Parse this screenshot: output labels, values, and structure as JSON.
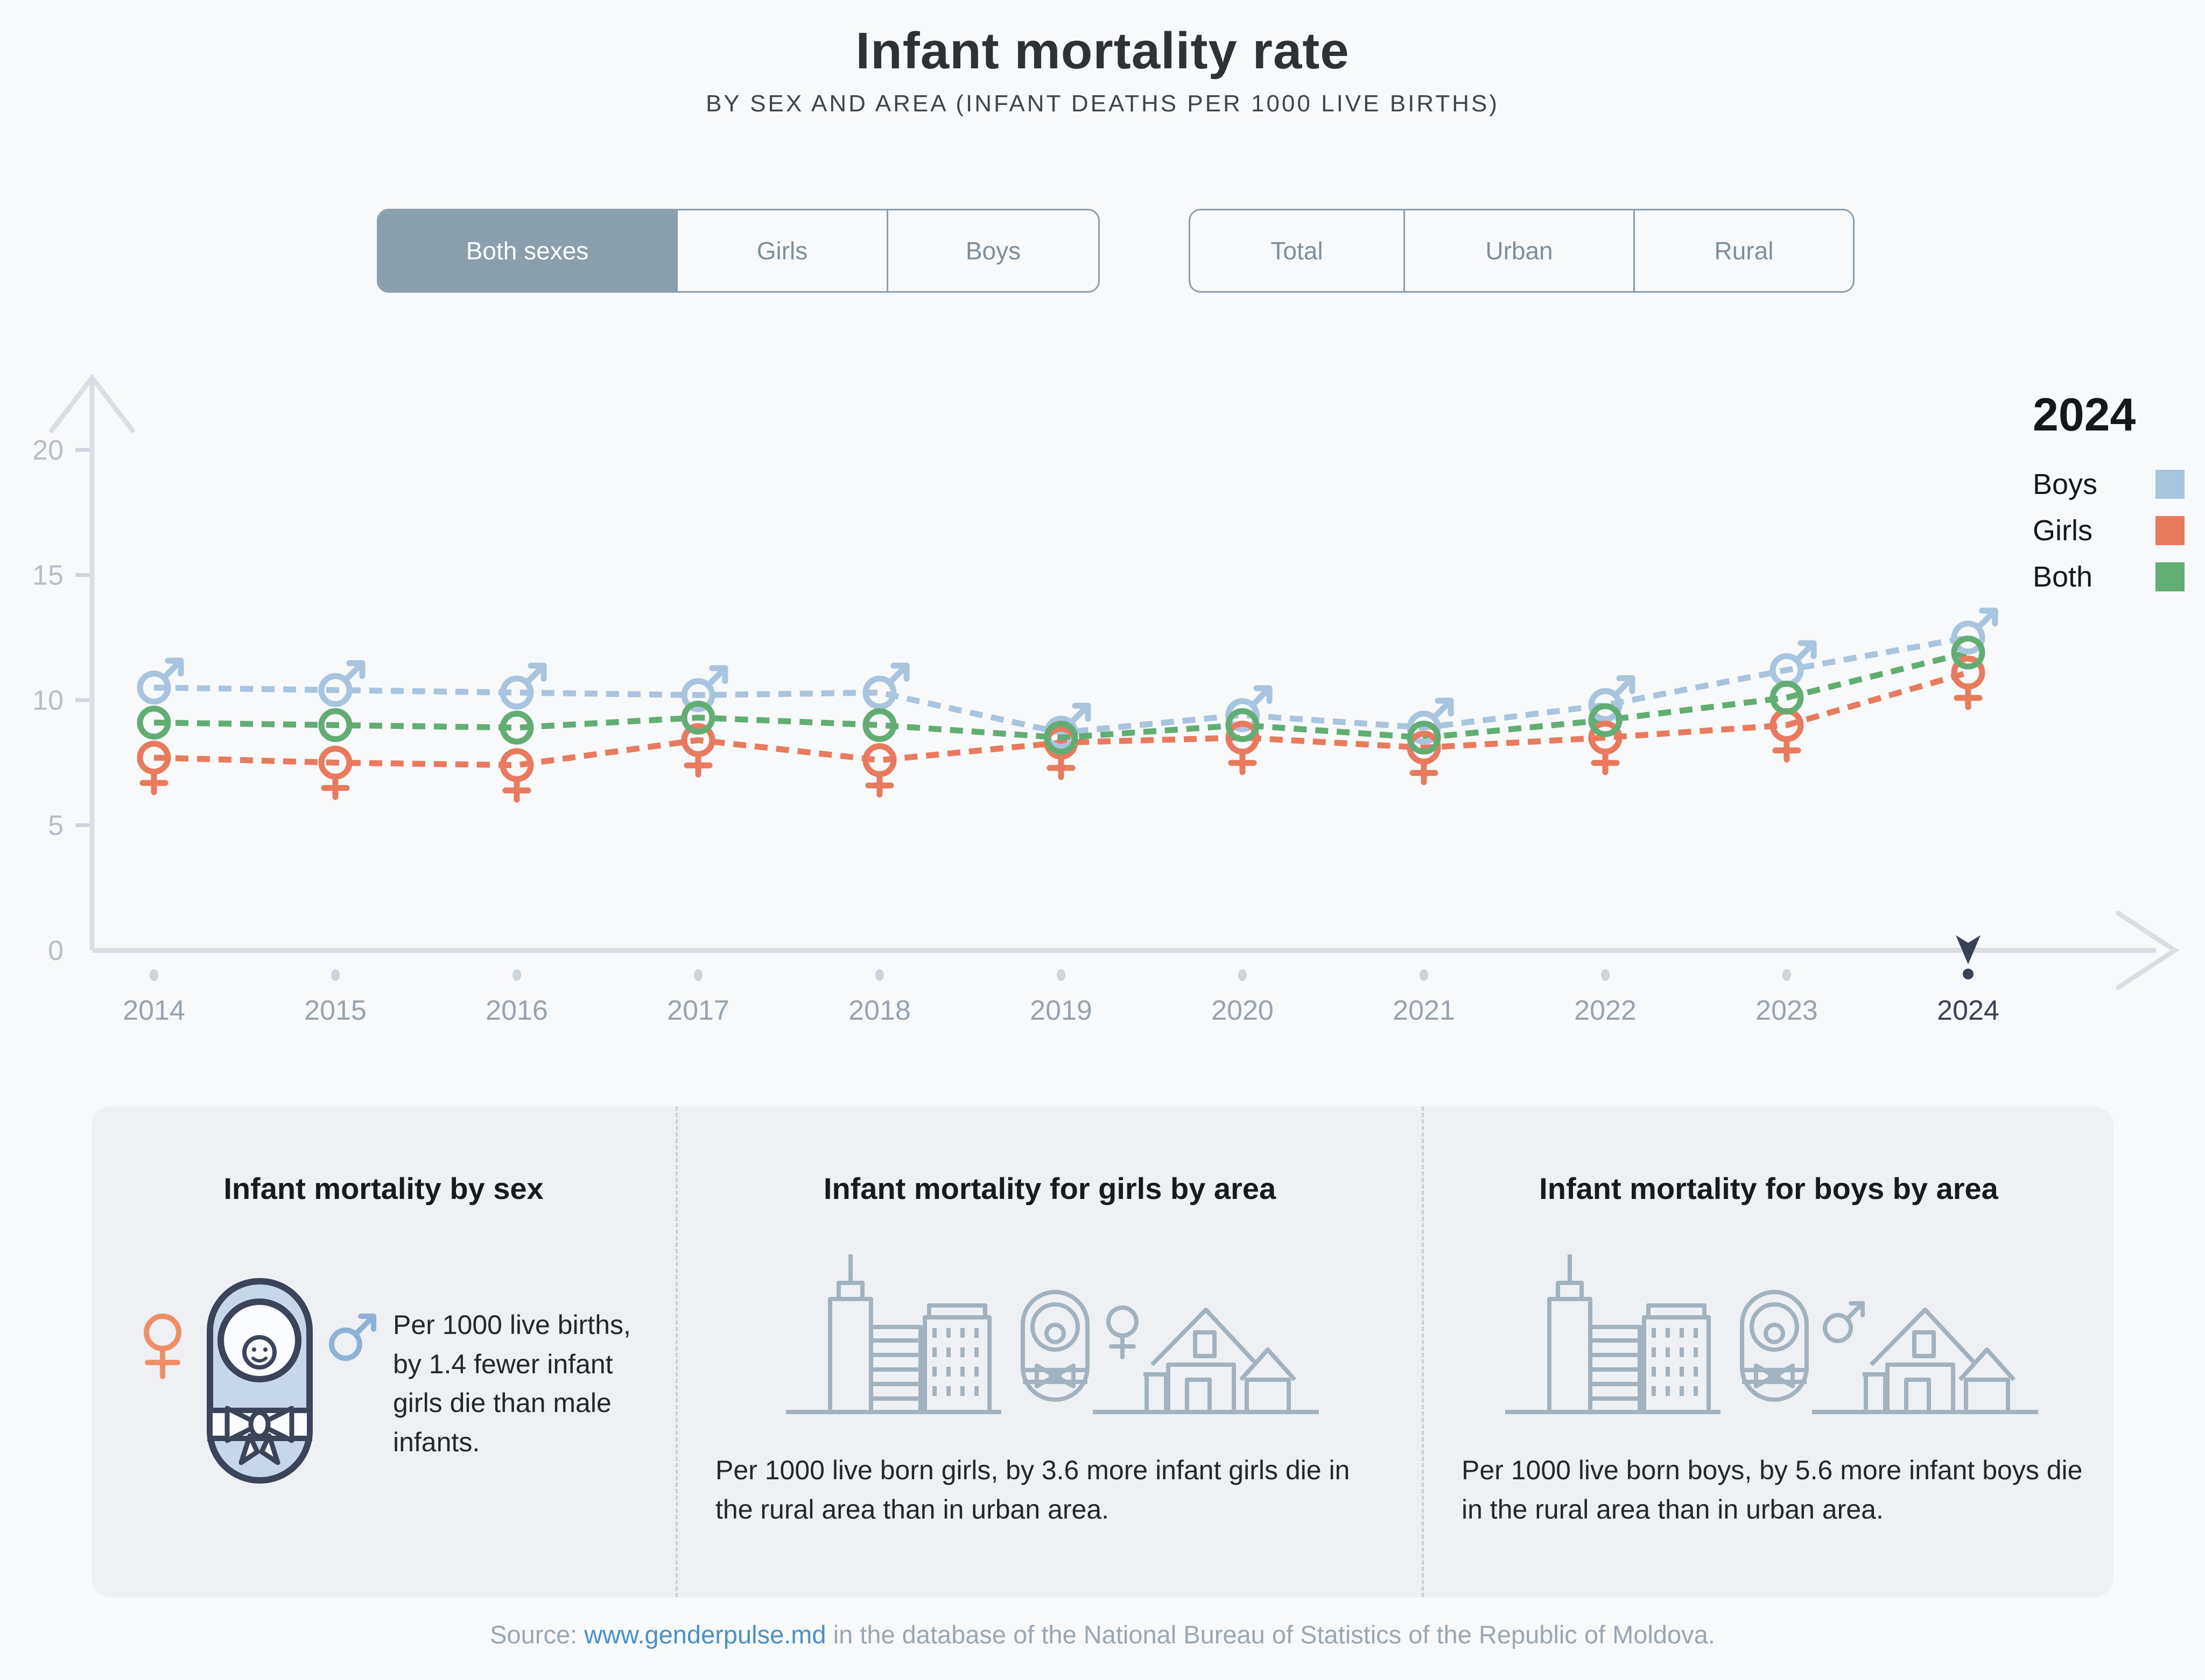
{
  "title": "Infant mortality rate",
  "subtitle": "BY SEX AND AREA (INFANT DEATHS PER 1000 LIVE BIRTHS)",
  "filters": {
    "sex": {
      "options": [
        "Both sexes",
        "Girls",
        "Boys"
      ],
      "active": "Both sexes"
    },
    "area": {
      "options": [
        "Total",
        "Urban",
        "Rural"
      ],
      "active": null
    }
  },
  "chart_data": {
    "type": "line",
    "title": "Infant mortality rate",
    "xlabel": "",
    "ylabel": "Infant deaths per 1000 live births",
    "x": [
      2014,
      2015,
      2016,
      2017,
      2018,
      2019,
      2020,
      2021,
      2022,
      2023,
      2024
    ],
    "series": [
      {
        "name": "Boys",
        "color": "#a9c4de",
        "marker": "male",
        "values": [
          10.5,
          10.4,
          10.3,
          10.2,
          10.3,
          8.7,
          9.4,
          8.9,
          9.8,
          11.2,
          12.5
        ]
      },
      {
        "name": "Girls",
        "color": "#e87a5e",
        "marker": "female",
        "values": [
          7.7,
          7.5,
          7.4,
          8.4,
          7.6,
          8.3,
          8.5,
          8.1,
          8.5,
          9.0,
          11.1
        ]
      },
      {
        "name": "Both",
        "color": "#62ad74",
        "marker": "circle",
        "values": [
          9.1,
          9.0,
          8.9,
          9.3,
          9.0,
          8.5,
          9.0,
          8.5,
          9.2,
          10.1,
          11.9
        ]
      }
    ],
    "ylim": [
      0,
      20
    ],
    "yticks": [
      0,
      5,
      10,
      15,
      20
    ],
    "grid": false,
    "line_style": "dashed",
    "legend": {
      "title": "2024",
      "position": "top-right"
    },
    "highlight_year": 2024
  },
  "cards": [
    {
      "title": "Infant mortality by sex",
      "text": "Per 1000 live births, by 1.4 fewer infant girls die than male infants.",
      "icon": "swaddled-baby-with-gender-symbols"
    },
    {
      "title": "Infant mortality for girls by area",
      "text": "Per 1000 live born girls, by 3.6 more infant girls die in the rural area than in urban area.",
      "icon": "city-baby-female-house"
    },
    {
      "title": "Infant mortality for boys by area",
      "text": "Per 1000 live born boys, by 5.6 more infant boys die in the rural area than in urban area.",
      "icon": "city-baby-male-house"
    }
  ],
  "source": {
    "prefix": "Source: ",
    "link": "www.genderpulse.md",
    "suffix": " in the database of the National Bureau of Statistics of the Republic of Moldova."
  },
  "colors": {
    "accent_button": "#8b9eac",
    "axis": "#d9dee4",
    "current_year": "#3a4356",
    "panel_bg": "#eef0f3",
    "link": "#4a90c8"
  }
}
